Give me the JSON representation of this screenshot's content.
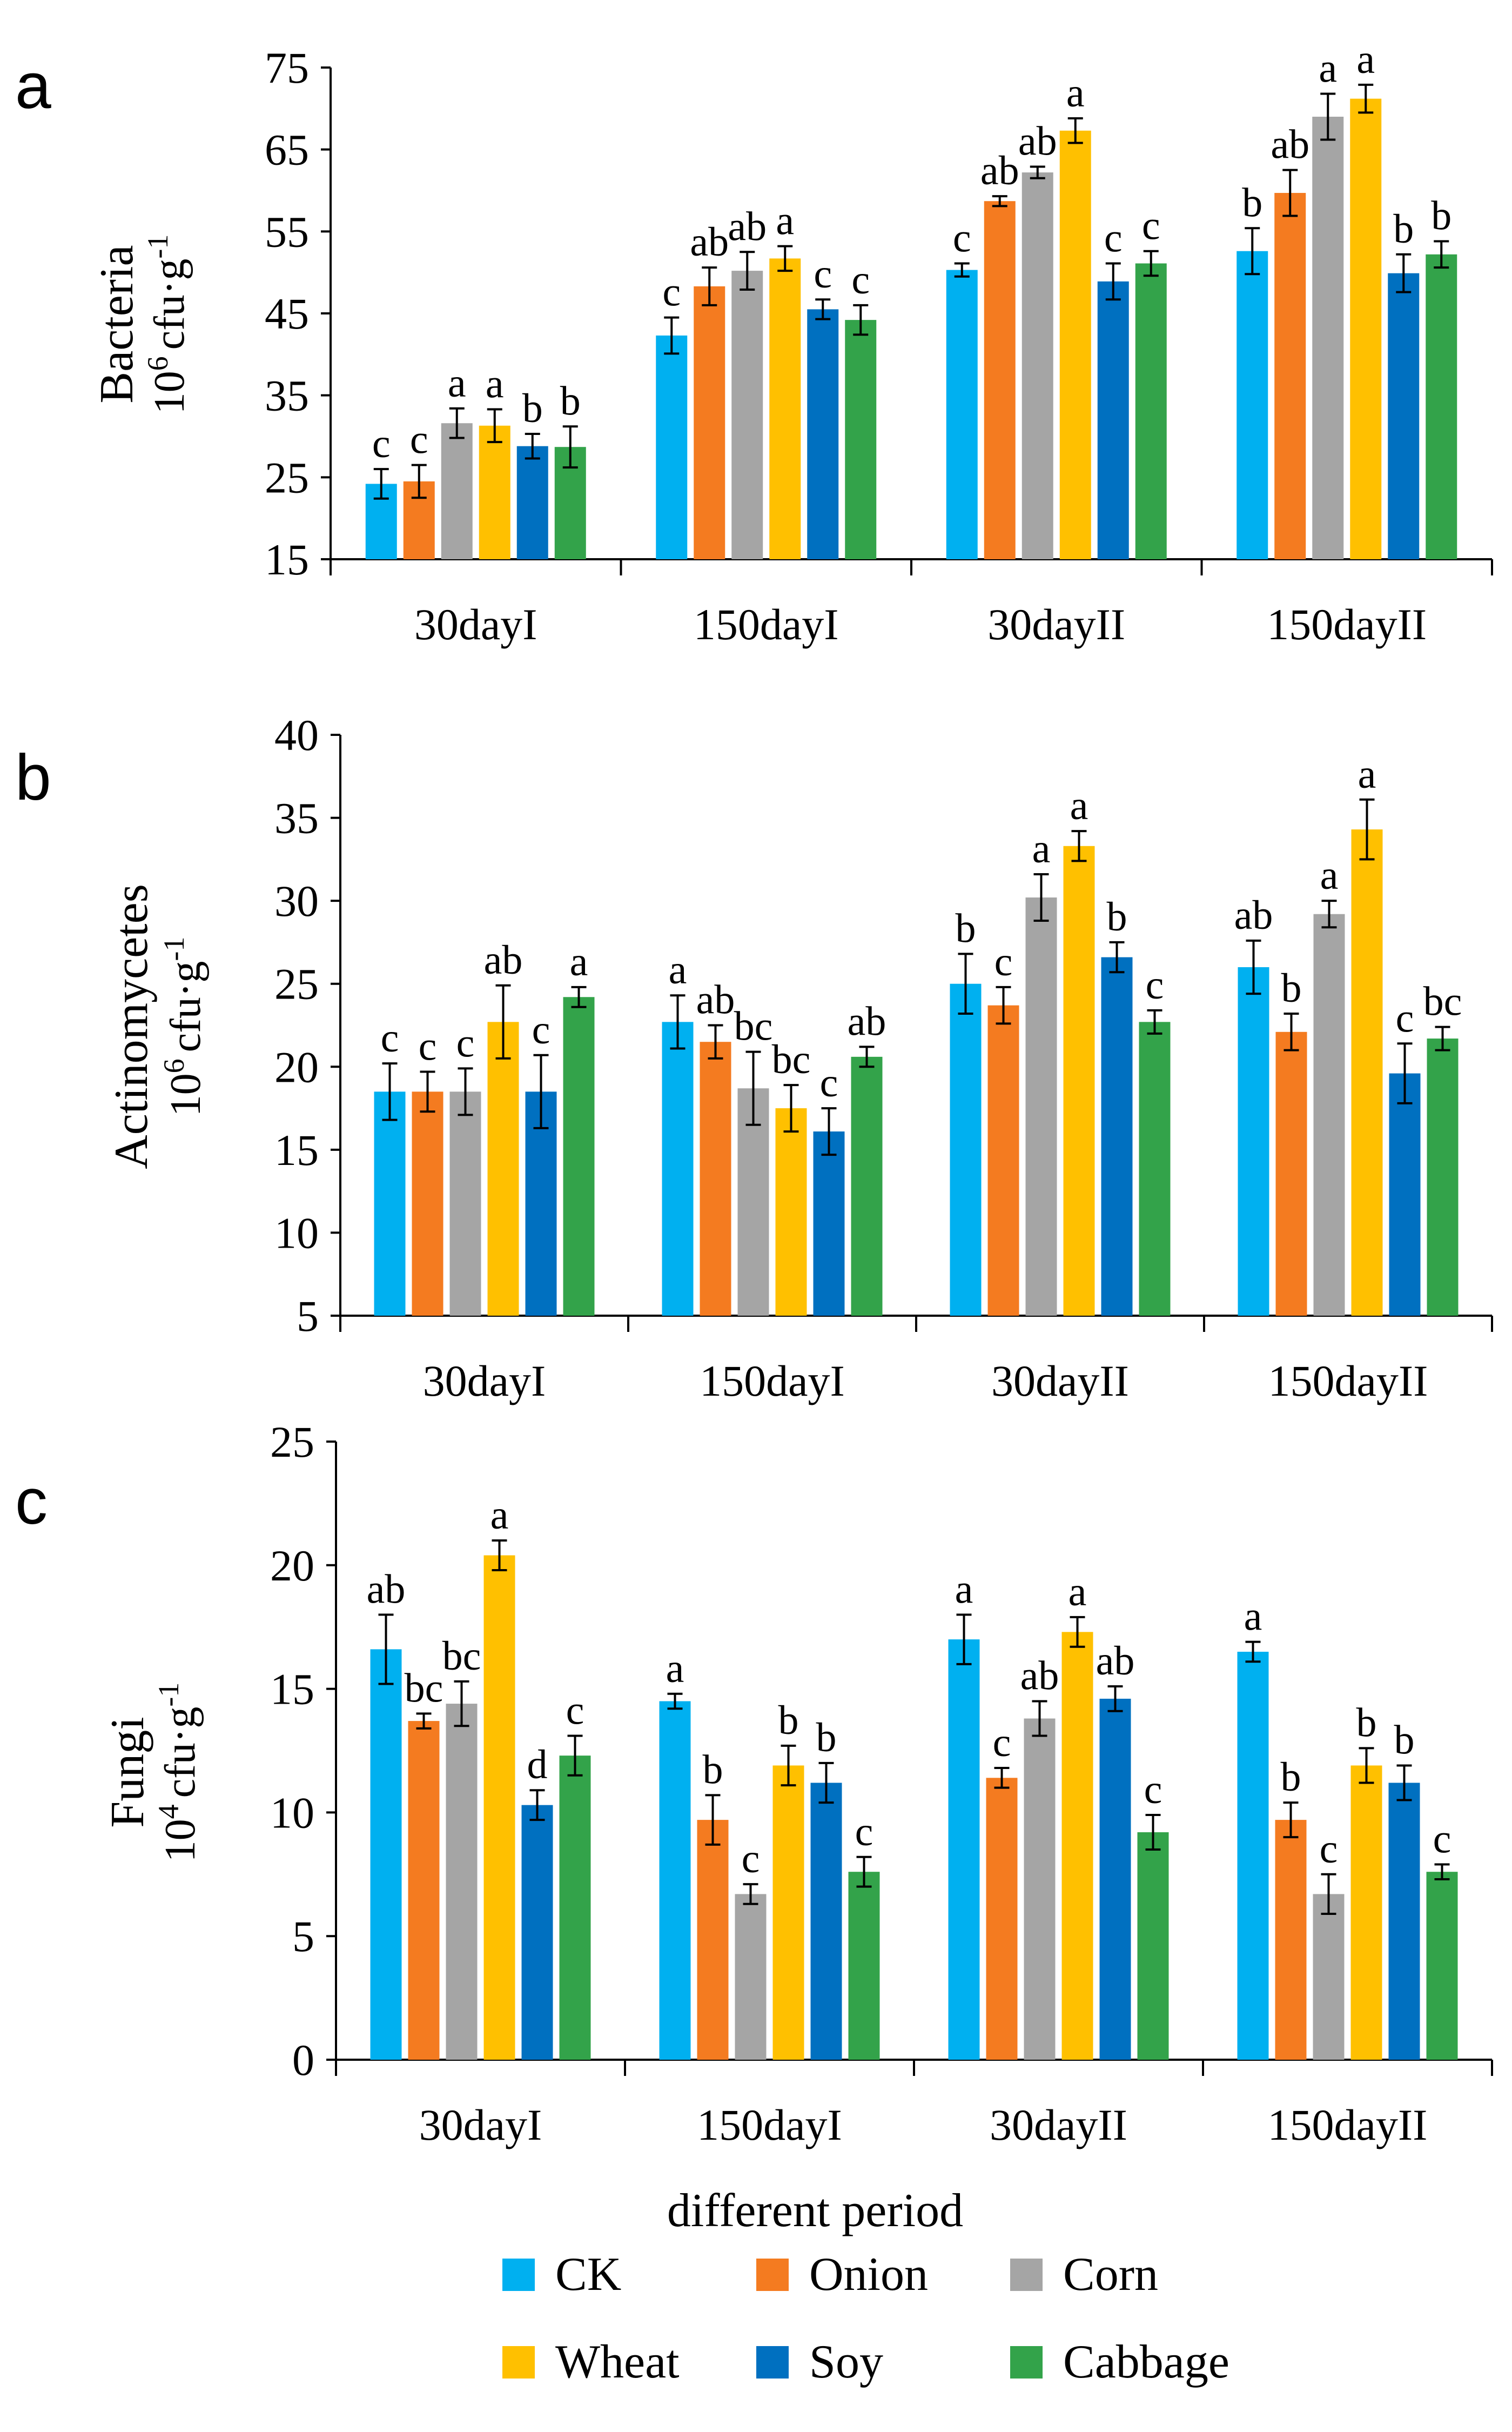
{
  "colors": {
    "CK": "#00b0f0",
    "Onion": "#f47b20",
    "Corn": "#a5a5a5",
    "Wheat": "#ffc000",
    "Soy": "#0070c0",
    "Cabbage": "#33a34a"
  },
  "chart_data": [
    {
      "type": "bar",
      "panel_label": "a",
      "title": "",
      "xlabel": "",
      "ylabel": "Bacteria",
      "yunit_base": "10",
      "yunit_exp": "6",
      "yunit_text": "cfu·g",
      "yunit_sup": "-1",
      "ylim": [
        15,
        75
      ],
      "yticks": [
        15,
        25,
        35,
        45,
        55,
        65,
        75
      ],
      "categories": [
        "30dayI",
        "150dayI",
        "30dayII",
        "150dayII"
      ],
      "series": [
        {
          "name": "CK",
          "values": [
            24.2,
            42.3,
            50.3,
            52.6
          ],
          "errors": [
            1.8,
            2.2,
            0.8,
            2.8
          ],
          "letters": [
            "c",
            "c",
            "c",
            "b"
          ]
        },
        {
          "name": "Onion",
          "values": [
            24.5,
            48.3,
            58.7,
            59.7
          ],
          "errors": [
            2.0,
            2.3,
            0.6,
            2.8
          ],
          "letters": [
            "c",
            "ab",
            "ab",
            "ab"
          ]
        },
        {
          "name": "Corn",
          "values": [
            31.6,
            50.2,
            62.2,
            69.0
          ],
          "errors": [
            1.8,
            2.3,
            0.7,
            2.8
          ],
          "letters": [
            "a",
            "ab",
            "ab",
            "a"
          ]
        },
        {
          "name": "Wheat",
          "values": [
            31.3,
            51.7,
            67.3,
            71.2
          ],
          "errors": [
            2.0,
            1.5,
            1.5,
            1.7
          ],
          "letters": [
            "a",
            "a",
            "a",
            "a"
          ]
        },
        {
          "name": "Soy",
          "values": [
            28.8,
            45.5,
            48.9,
            49.9
          ],
          "errors": [
            1.5,
            1.2,
            2.2,
            2.3
          ],
          "letters": [
            "b",
            "c",
            "c",
            "b"
          ]
        },
        {
          "name": "Cabbage",
          "values": [
            28.7,
            44.2,
            51.1,
            52.2
          ],
          "errors": [
            2.5,
            1.8,
            1.5,
            1.6
          ],
          "letters": [
            "b",
            "c",
            "c",
            "b"
          ]
        }
      ]
    },
    {
      "type": "bar",
      "panel_label": "b",
      "title": "",
      "xlabel": "",
      "ylabel": "Actinomycetes",
      "yunit_base": "10",
      "yunit_exp": "6",
      "yunit_text": "cfu·g",
      "yunit_sup": "-1",
      "ylim": [
        5,
        40
      ],
      "yticks": [
        5,
        10,
        15,
        20,
        25,
        30,
        35,
        40
      ],
      "categories": [
        "30dayI",
        "150dayI",
        "30dayII",
        "150dayII"
      ],
      "series": [
        {
          "name": "CK",
          "values": [
            18.5,
            22.7,
            25.0,
            26.0
          ],
          "errors": [
            1.7,
            1.6,
            1.8,
            1.6
          ],
          "letters": [
            "c",
            "a",
            "b",
            "ab"
          ]
        },
        {
          "name": "Onion",
          "values": [
            18.5,
            21.5,
            23.7,
            22.1
          ],
          "errors": [
            1.2,
            1.0,
            1.1,
            1.1
          ],
          "letters": [
            "c",
            "ab",
            "c",
            "b"
          ]
        },
        {
          "name": "Corn",
          "values": [
            18.5,
            18.7,
            30.2,
            29.2
          ],
          "errors": [
            1.4,
            2.2,
            1.4,
            0.8
          ],
          "letters": [
            "c",
            "bc",
            "a",
            "a"
          ]
        },
        {
          "name": "Wheat",
          "values": [
            22.7,
            17.5,
            33.3,
            34.3
          ],
          "errors": [
            2.2,
            1.4,
            0.9,
            1.8
          ],
          "letters": [
            "ab",
            "bc",
            "a",
            "a"
          ]
        },
        {
          "name": "Soy",
          "values": [
            18.5,
            16.1,
            26.6,
            19.6
          ],
          "errors": [
            2.2,
            1.4,
            0.9,
            1.8
          ],
          "letters": [
            "c",
            "c",
            "b",
            "c"
          ]
        },
        {
          "name": "Cabbage",
          "values": [
            24.2,
            20.6,
            22.7,
            21.7
          ],
          "errors": [
            0.6,
            0.6,
            0.7,
            0.7
          ],
          "letters": [
            "a",
            "ab",
            "c",
            "bc"
          ]
        }
      ]
    },
    {
      "type": "bar",
      "panel_label": "c",
      "title": "",
      "xlabel": "different period",
      "ylabel": "Fungi",
      "yunit_base": "10",
      "yunit_exp": "4",
      "yunit_text": "cfu·g",
      "yunit_sup": "-1",
      "ylim": [
        0,
        25
      ],
      "yticks": [
        0,
        5,
        10,
        15,
        20,
        25
      ],
      "categories": [
        "30dayI",
        "150dayI",
        "30dayII",
        "150dayII"
      ],
      "series": [
        {
          "name": "CK",
          "values": [
            16.6,
            14.5,
            17.0,
            16.5
          ],
          "errors": [
            1.4,
            0.3,
            1.0,
            0.4
          ],
          "letters": [
            "ab",
            "a",
            "a",
            "a"
          ]
        },
        {
          "name": "Onion",
          "values": [
            13.7,
            9.7,
            11.4,
            9.7
          ],
          "errors": [
            0.3,
            1.0,
            0.4,
            0.7
          ],
          "letters": [
            "bc",
            "b",
            "c",
            "b"
          ]
        },
        {
          "name": "Corn",
          "values": [
            14.4,
            6.7,
            13.8,
            6.7
          ],
          "errors": [
            0.9,
            0.4,
            0.7,
            0.8
          ],
          "letters": [
            "bc",
            "c",
            "ab",
            "c"
          ]
        },
        {
          "name": "Wheat",
          "values": [
            20.4,
            11.9,
            17.3,
            11.9
          ],
          "errors": [
            0.6,
            0.8,
            0.6,
            0.7
          ],
          "letters": [
            "a",
            "b",
            "a",
            "b"
          ]
        },
        {
          "name": "Soy",
          "values": [
            10.3,
            11.2,
            14.6,
            11.2
          ],
          "errors": [
            0.6,
            0.8,
            0.5,
            0.7
          ],
          "letters": [
            "d",
            "b",
            "ab",
            "b"
          ]
        },
        {
          "name": "Cabbage",
          "values": [
            12.3,
            7.6,
            9.2,
            7.6
          ],
          "errors": [
            0.8,
            0.6,
            0.7,
            0.3
          ],
          "letters": [
            "c",
            "c",
            "c",
            "c"
          ]
        }
      ]
    }
  ],
  "legend": {
    "items": [
      "CK",
      "Onion",
      "Corn",
      "Wheat",
      "Soy",
      "Cabbage"
    ]
  }
}
